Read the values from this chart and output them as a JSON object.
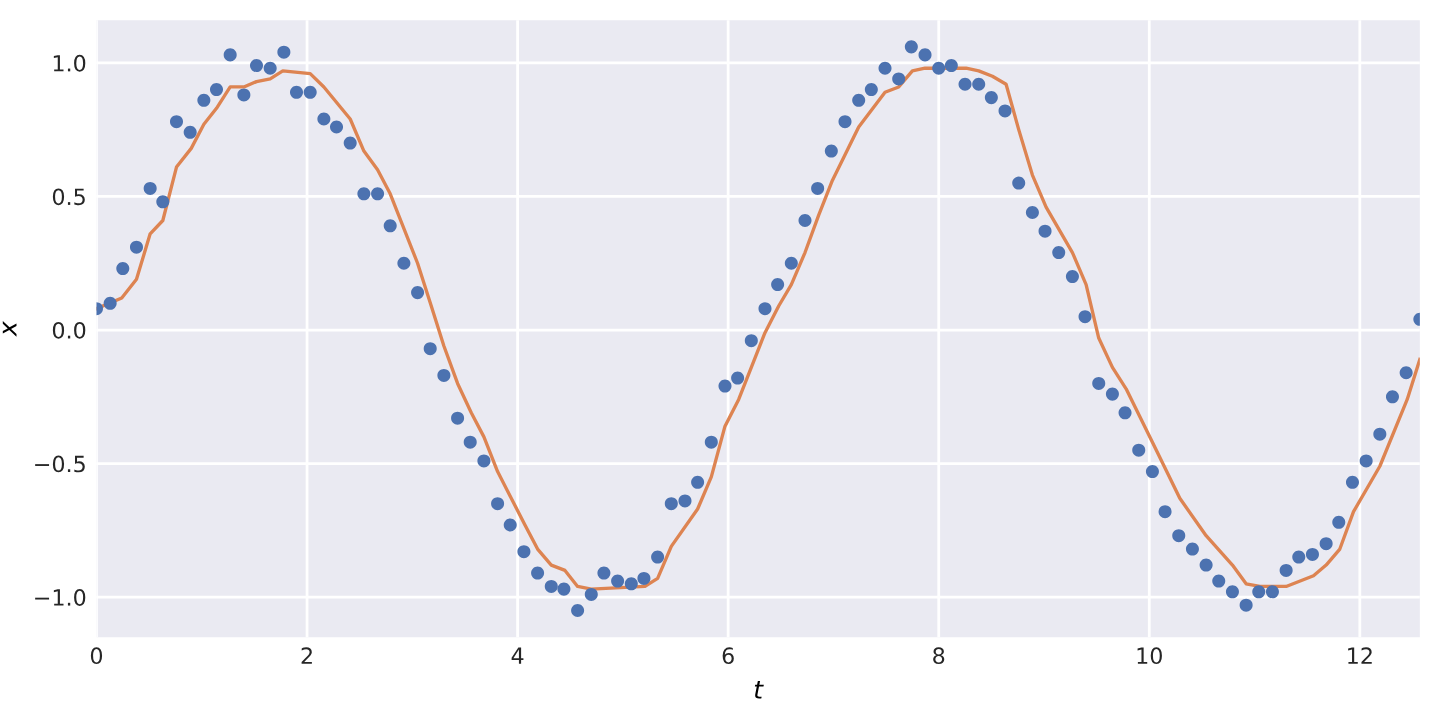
{
  "chart_data": {
    "type": "scatter",
    "xlabel": "t",
    "ylabel": "x",
    "xlim": [
      0,
      12.57
    ],
    "ylim": [
      -1.15,
      1.16
    ],
    "xticks": [
      0,
      2,
      4,
      6,
      8,
      10,
      12
    ],
    "yticks": [
      {
        "value": -1.0,
        "label": "−1.0"
      },
      {
        "value": -0.5,
        "label": "−0.5"
      },
      {
        "value": 0.0,
        "label": "0.0"
      },
      {
        "value": 0.5,
        "label": "0.5"
      },
      {
        "value": 1.0,
        "label": "1.0"
      }
    ],
    "grid": true,
    "series": [
      {
        "marker": "circle",
        "color": "#4c72b0",
        "x": [
          0,
          0.13,
          0.25,
          0.38,
          0.51,
          0.63,
          0.76,
          0.89,
          1.02,
          1.14,
          1.27,
          1.4,
          1.52,
          1.65,
          1.78,
          1.9,
          2.03,
          2.16,
          2.28,
          2.41,
          2.54,
          2.67,
          2.79,
          2.92,
          3.05,
          3.17,
          3.3,
          3.43,
          3.55,
          3.68,
          3.81,
          3.93,
          4.06,
          4.19,
          4.32,
          4.44,
          4.57,
          4.7,
          4.82,
          4.95,
          5.08,
          5.2,
          5.33,
          5.46,
          5.59,
          5.71,
          5.84,
          5.97,
          6.09,
          6.22,
          6.35,
          6.47,
          6.6,
          6.73,
          6.85,
          6.98,
          7.11,
          7.24,
          7.36,
          7.49,
          7.62,
          7.74,
          7.87,
          8.0,
          8.12,
          8.25,
          8.38,
          8.5,
          8.63,
          8.76,
          8.89,
          9.01,
          9.14,
          9.27,
          9.39,
          9.52,
          9.65,
          9.77,
          9.9,
          10.03,
          10.15,
          10.28,
          10.41,
          10.54,
          10.66,
          10.79,
          10.92,
          11.04,
          11.17,
          11.3,
          11.42,
          11.55,
          11.68,
          11.8,
          11.93,
          12.06,
          12.19,
          12.31,
          12.44,
          12.57
        ],
        "values": [
          0.08,
          0.1,
          0.23,
          0.31,
          0.53,
          0.48,
          0.78,
          0.74,
          0.86,
          0.9,
          1.03,
          0.88,
          0.99,
          0.98,
          1.04,
          0.89,
          0.89,
          0.79,
          0.76,
          0.7,
          0.51,
          0.51,
          0.39,
          0.25,
          0.14,
          -0.07,
          -0.17,
          -0.33,
          -0.42,
          -0.49,
          -0.65,
          -0.73,
          -0.83,
          -0.91,
          -0.96,
          -0.97,
          -1.05,
          -0.99,
          -0.91,
          -0.94,
          -0.95,
          -0.93,
          -0.85,
          -0.65,
          -0.64,
          -0.57,
          -0.42,
          -0.21,
          -0.18,
          -0.04,
          0.08,
          0.17,
          0.25,
          0.41,
          0.53,
          0.67,
          0.78,
          0.86,
          0.9,
          0.98,
          0.94,
          1.06,
          1.03,
          0.98,
          0.99,
          0.92,
          0.92,
          0.87,
          0.82,
          0.55,
          0.44,
          0.37,
          0.29,
          0.2,
          0.05,
          -0.2,
          -0.24,
          -0.31,
          -0.45,
          -0.53,
          -0.68,
          -0.77,
          -0.82,
          -0.88,
          -0.94,
          -0.98,
          -1.03,
          -0.98,
          -0.98,
          -0.9,
          -0.85,
          -0.84,
          -0.8,
          -0.72,
          -0.57,
          -0.49,
          -0.39,
          -0.25,
          -0.16,
          0.04
        ]
      },
      {
        "type": "line",
        "marker": "none",
        "line_style": "solid",
        "color": "#dd8452",
        "x": [
          0,
          0.24,
          0.38,
          0.51,
          0.63,
          0.76,
          0.9,
          1.02,
          1.14,
          1.27,
          1.4,
          1.52,
          1.65,
          1.77,
          2.03,
          2.16,
          2.41,
          2.54,
          2.67,
          2.79,
          3.05,
          3.18,
          3.3,
          3.43,
          3.56,
          3.68,
          3.81,
          4.07,
          4.19,
          4.32,
          4.45,
          4.57,
          4.7,
          5.21,
          5.33,
          5.46,
          5.71,
          5.84,
          5.97,
          6.1,
          6.22,
          6.35,
          6.48,
          6.6,
          6.73,
          6.86,
          6.99,
          7.24,
          7.49,
          7.62,
          7.75,
          7.87,
          8.26,
          8.38,
          8.51,
          8.64,
          8.76,
          8.89,
          9.02,
          9.27,
          9.4,
          9.52,
          9.65,
          9.78,
          10.03,
          10.29,
          10.54,
          10.79,
          10.92,
          11.05,
          11.3,
          11.56,
          11.68,
          11.81,
          11.94,
          12.19,
          12.45,
          12.57
        ],
        "values": [
          0.08,
          0.12,
          0.19,
          0.36,
          0.41,
          0.61,
          0.68,
          0.77,
          0.83,
          0.91,
          0.91,
          0.93,
          0.94,
          0.97,
          0.96,
          0.91,
          0.79,
          0.67,
          0.6,
          0.51,
          0.25,
          0.09,
          -0.06,
          -0.2,
          -0.31,
          -0.4,
          -0.53,
          -0.73,
          -0.82,
          -0.88,
          -0.9,
          -0.96,
          -0.97,
          -0.96,
          -0.93,
          -0.81,
          -0.67,
          -0.55,
          -0.36,
          -0.26,
          -0.14,
          -0.01,
          0.09,
          0.17,
          0.29,
          0.43,
          0.56,
          0.76,
          0.89,
          0.91,
          0.97,
          0.98,
          0.98,
          0.97,
          0.95,
          0.92,
          0.75,
          0.58,
          0.46,
          0.29,
          0.17,
          -0.03,
          -0.14,
          -0.22,
          -0.42,
          -0.63,
          -0.77,
          -0.88,
          -0.95,
          -0.96,
          -0.96,
          -0.92,
          -0.88,
          -0.82,
          -0.68,
          -0.51,
          -0.26,
          -0.11
        ]
      }
    ]
  }
}
